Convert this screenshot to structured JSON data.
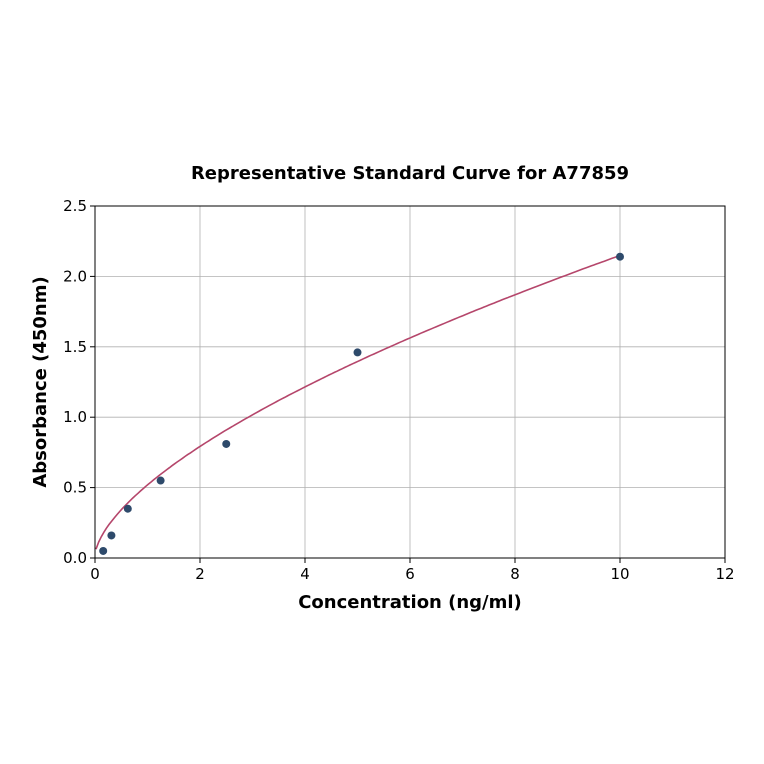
{
  "chart_data": {
    "type": "scatter",
    "title": "Representative Standard Curve for A77859",
    "xlabel": "Concentration (ng/ml)",
    "ylabel": "Absorbance (450nm)",
    "xlim": [
      0,
      12
    ],
    "ylim": [
      0,
      2.5
    ],
    "xticks": [
      "0",
      "2",
      "4",
      "6",
      "8",
      "10",
      "12"
    ],
    "yticks": [
      "0.0",
      "0.5",
      "1.0",
      "1.5",
      "2.0",
      "2.5"
    ],
    "grid": true,
    "points": {
      "x": [
        0.156,
        0.3125,
        0.625,
        1.25,
        2.5,
        5,
        10
      ],
      "y": [
        0.05,
        0.16,
        0.35,
        0.55,
        0.81,
        1.46,
        2.14
      ]
    },
    "point_color": "#2e4a6b",
    "curve_color": "#b5466b"
  }
}
